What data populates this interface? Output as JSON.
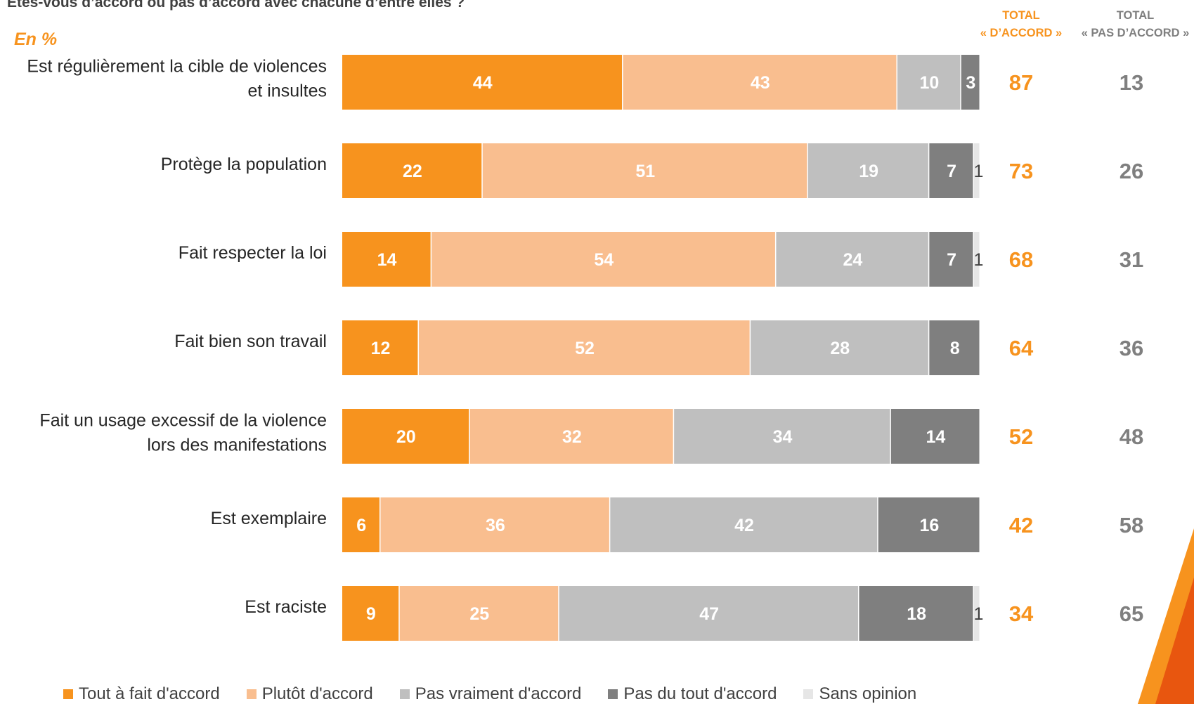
{
  "header": {
    "question": "Etes-vous d’accord ou pas d’accord avec chacune d’entre elles ?",
    "unit": "En %",
    "total_agree_line1": "TOTAL",
    "total_agree_line2": "« D’ACCORD »",
    "total_disagree_line1": "TOTAL",
    "total_disagree_line2": "« PAS D’ACCORD »"
  },
  "colors": {
    "tout_a_fait": "#f7931e",
    "plutot": "#f9be8f",
    "pas_vraiment": "#bfbfbf",
    "pas_du_tout": "#7f7f7f",
    "sans_opinion": "#e6e6e6",
    "agree_total": "#f7931e",
    "disagree_total": "#7f7f7f"
  },
  "chart_data": {
    "type": "bar",
    "orientation": "horizontal",
    "stacked": true,
    "unit": "En %",
    "categories": [
      [
        "Est régulièrement la cible de violences",
        "et insultes"
      ],
      [
        "Protège la population"
      ],
      [
        "Fait respecter la loi"
      ],
      [
        "Fait bien son travail"
      ],
      [
        "Fait un usage excessif de la violence",
        "lors des manifestations"
      ],
      [
        "Est exemplaire"
      ],
      [
        "Est raciste"
      ]
    ],
    "series": [
      {
        "name": "Tout à fait d'accord",
        "values": [
          44,
          22,
          14,
          12,
          20,
          6,
          9
        ]
      },
      {
        "name": "Plutôt d'accord",
        "values": [
          43,
          51,
          54,
          52,
          32,
          36,
          25
        ]
      },
      {
        "name": "Pas vraiment d'accord",
        "values": [
          10,
          19,
          24,
          28,
          34,
          42,
          47
        ]
      },
      {
        "name": "Pas du tout d'accord",
        "values": [
          3,
          7,
          7,
          8,
          14,
          16,
          18
        ]
      },
      {
        "name": "Sans opinion",
        "values": [
          0,
          1,
          1,
          0,
          0,
          0,
          1
        ]
      }
    ],
    "total_agree": [
      87,
      73,
      68,
      64,
      52,
      42,
      34
    ],
    "total_disagree": [
      13,
      26,
      31,
      36,
      48,
      58,
      65
    ],
    "xlim": [
      0,
      100
    ],
    "legend_position": "bottom"
  }
}
